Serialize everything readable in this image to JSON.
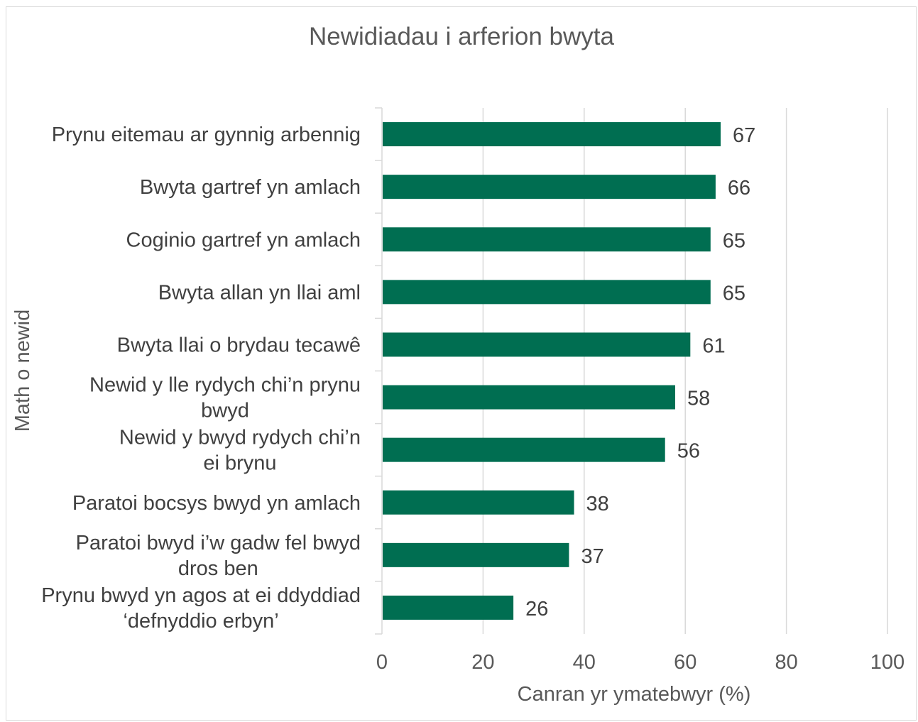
{
  "chart_data": {
    "type": "bar",
    "orientation": "horizontal",
    "title": "Newidiadau i arferion bwyta",
    "xlabel": "Canran yr ymatebwyr (%)",
    "ylabel": "Math o newid",
    "xlim": [
      0,
      100
    ],
    "xticks": [
      "0",
      "20",
      "40",
      "60",
      "80",
      "100"
    ],
    "grid": true,
    "legend": "none",
    "bar_color": "#006e51",
    "categories": [
      [
        "Prynu eitemau ar gynnig arbennig"
      ],
      [
        "Bwyta gartref yn amlach"
      ],
      [
        "Coginio gartref yn amlach"
      ],
      [
        "Bwyta allan yn llai aml"
      ],
      [
        "Bwyta llai o brydau tecawê"
      ],
      [
        "Newid y lle rydych chi’n prynu",
        "bwyd"
      ],
      [
        "Newid y bwyd rydych chi’n",
        "ei brynu"
      ],
      [
        "Paratoi bocsys bwyd yn amlach"
      ],
      [
        "Paratoi bwyd i’w gadw fel bwyd",
        "dros ben"
      ],
      [
        "Prynu bwyd yn agos at ei ddyddiad",
        "‘defnyddio erbyn’"
      ]
    ],
    "values": [
      67,
      66,
      65,
      65,
      61,
      58,
      56,
      38,
      37,
      26
    ]
  }
}
